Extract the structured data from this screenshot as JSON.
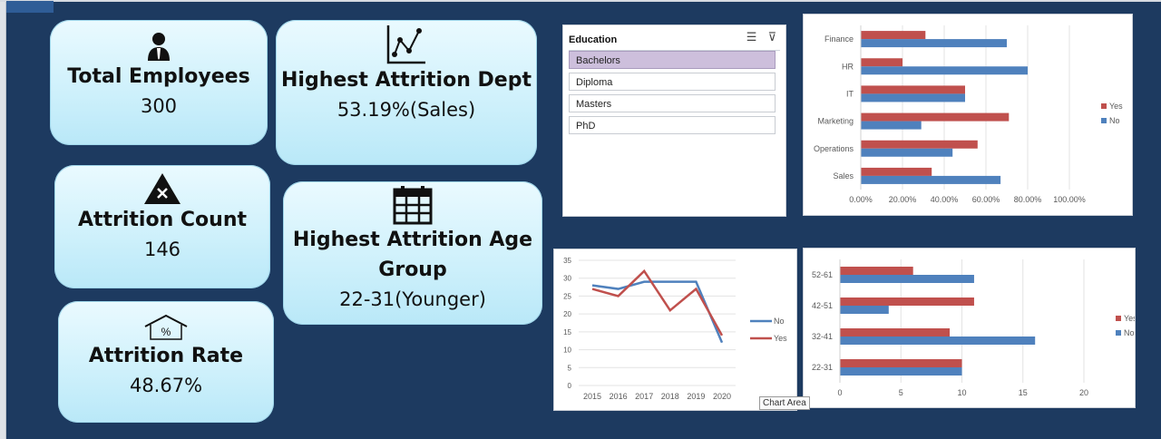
{
  "kpis": {
    "total_employees": {
      "title": "Total Employees",
      "value": "300"
    },
    "highest_attrition_dept": {
      "title": "Highest Attrition Dept",
      "value": "53.19%(Sales)"
    },
    "attrition_count": {
      "title": "Attrition Count",
      "value": "146"
    },
    "highest_attrition_age": {
      "title_line1": "Highest Attrition Age",
      "title_line2": "Group",
      "value": "22-31(Younger)"
    },
    "attrition_rate": {
      "title": "Attrition Rate",
      "value": "48.67%"
    }
  },
  "slicer": {
    "title": "Education",
    "items": [
      {
        "label": "Bachelors",
        "selected": true
      },
      {
        "label": "Diploma",
        "selected": false
      },
      {
        "label": "Masters",
        "selected": false
      },
      {
        "label": "PhD",
        "selected": false
      }
    ],
    "icons": [
      "multi-select-icon",
      "clear-filter-icon"
    ]
  },
  "tooltip": {
    "text": "Chart Area"
  },
  "colors": {
    "yes": "#c0504d",
    "no": "#4f81bd",
    "background": "#1d3a60"
  },
  "chart_data": [
    {
      "type": "bar",
      "orientation": "horizontal",
      "categories": [
        "Finance",
        "HR",
        "IT",
        "Marketing",
        "Operations",
        "Sales"
      ],
      "series": [
        {
          "name": "Yes",
          "values": [
            31,
            20,
            50,
            71,
            56,
            34
          ]
        },
        {
          "name": "No",
          "values": [
            70,
            80,
            50,
            29,
            44,
            67
          ]
        }
      ],
      "xticks": [
        "0.00%",
        "20.00%",
        "40.00%",
        "60.00%",
        "80.00%",
        "100.00%"
      ],
      "xlim": [
        0,
        100
      ],
      "legend": "right"
    },
    {
      "type": "line",
      "x": [
        "2015",
        "2016",
        "2017",
        "2018",
        "2019",
        "2020"
      ],
      "series": [
        {
          "name": "No",
          "values": [
            28,
            27,
            29,
            29,
            29,
            12
          ]
        },
        {
          "name": "Yes",
          "values": [
            27,
            25,
            32,
            21,
            27,
            14
          ]
        }
      ],
      "yticks": [
        "0",
        "5",
        "10",
        "15",
        "20",
        "25",
        "30",
        "35"
      ],
      "ylim": [
        0,
        35
      ],
      "legend": "right"
    },
    {
      "type": "bar",
      "orientation": "horizontal",
      "categories": [
        "52-61",
        "42-51",
        "32-41",
        "22-31"
      ],
      "series": [
        {
          "name": "Yes",
          "values": [
            6,
            11,
            9,
            10
          ]
        },
        {
          "name": "No",
          "values": [
            11,
            4,
            16,
            10
          ]
        }
      ],
      "xticks": [
        "0",
        "5",
        "10",
        "15",
        "20"
      ],
      "xlim": [
        0,
        20
      ],
      "legend": "right"
    }
  ]
}
